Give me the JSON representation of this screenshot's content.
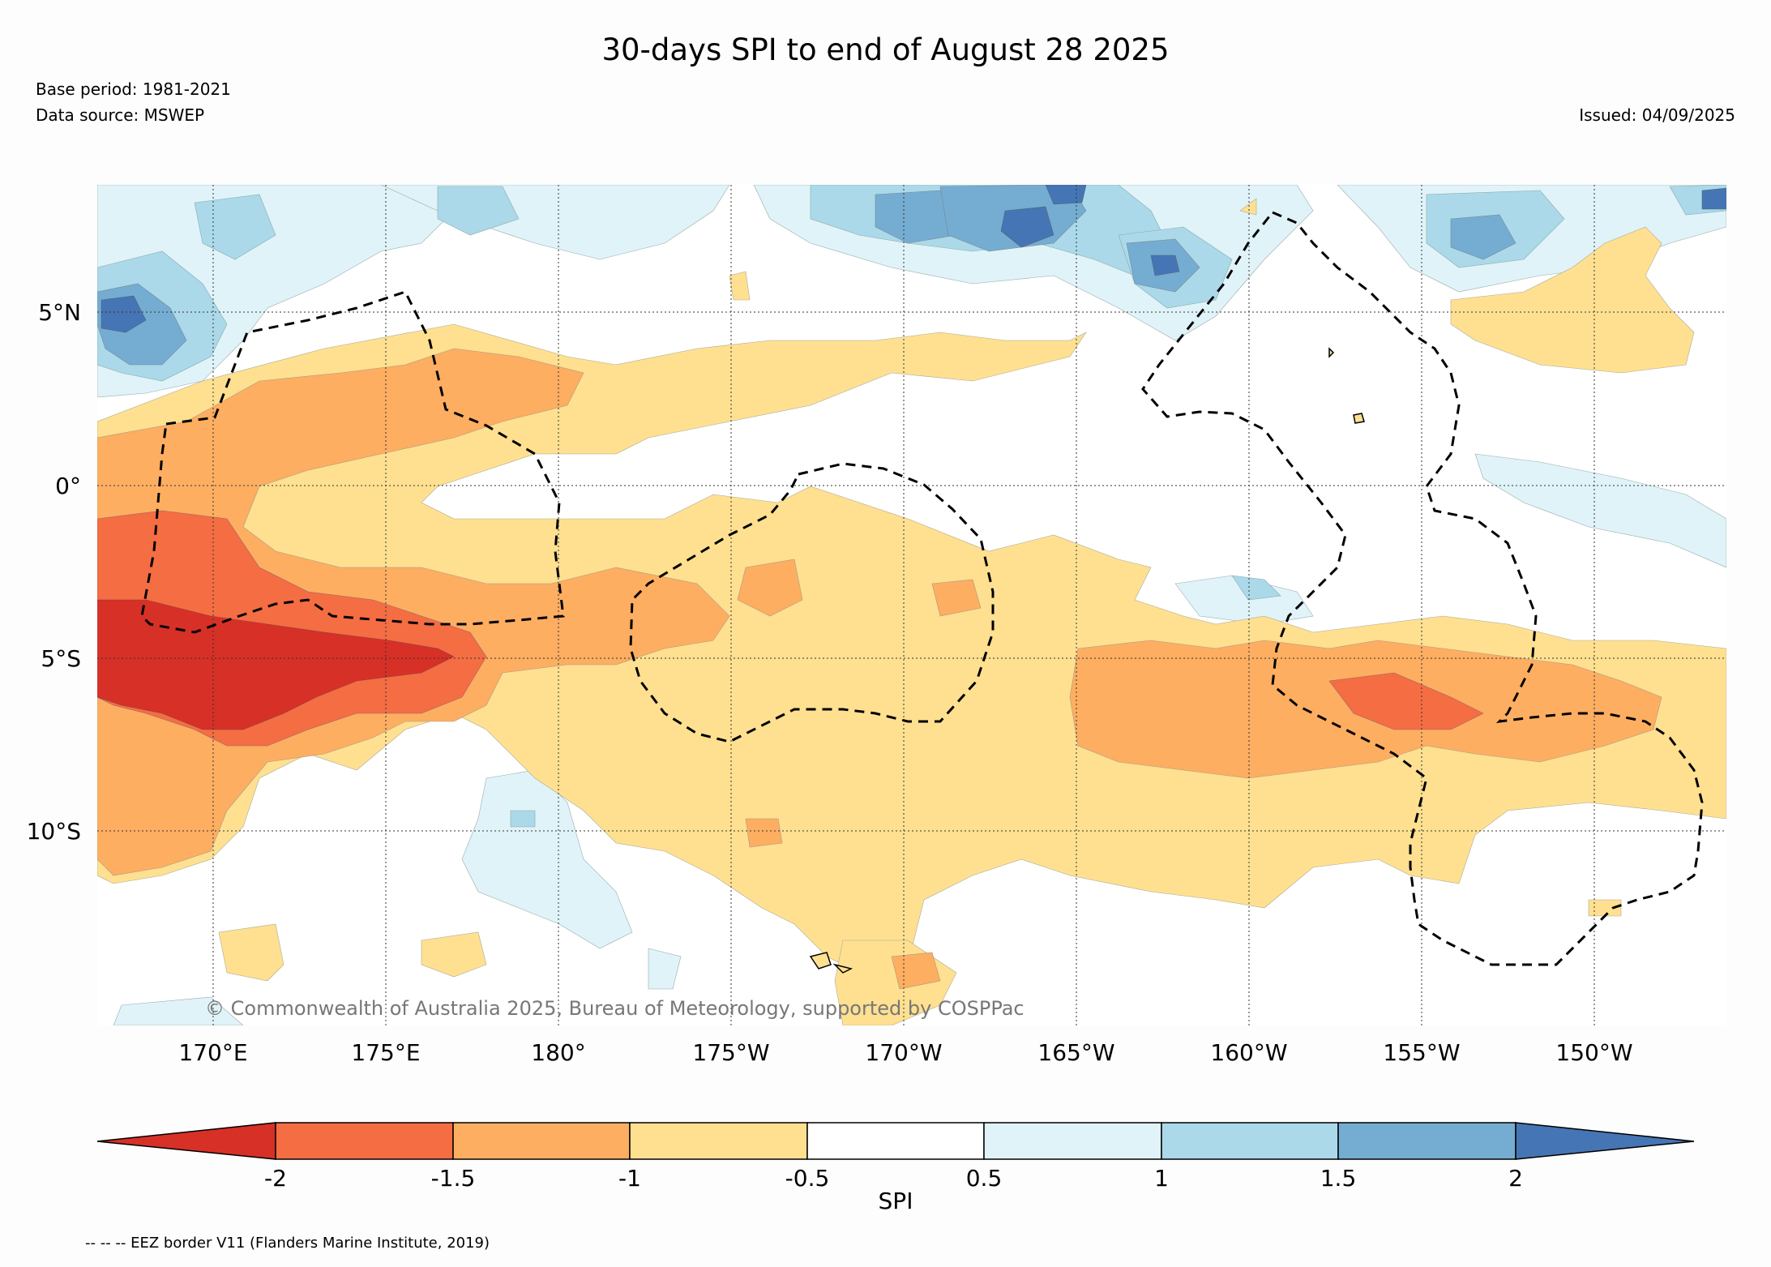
{
  "title": "30-days SPI to end of August 28 2025",
  "base_period": "Base period: 1981-2021",
  "data_source": "Data source: MSWEP",
  "issued": "Issued: 04/09/2025",
  "copyright": "© Commonwealth of Australia 2025, Bureau of Meteorology, supported by COSPPac",
  "lat_ticks": [
    "5°N",
    "0°",
    "5°S",
    "10°S"
  ],
  "lon_ticks": [
    "170°E",
    "175°E",
    "180°",
    "175°W",
    "170°W",
    "165°W",
    "160°W",
    "155°W",
    "150°W"
  ],
  "colorbar": {
    "label": "SPI",
    "ticks": [
      "-2",
      "-1.5",
      "-1",
      "-0.5",
      "0.5",
      "1",
      "1.5",
      "2"
    ],
    "colors": [
      "#d73027",
      "#f46d43",
      "#fdae61",
      "#fee090",
      "#ffffff",
      "#e0f3f8",
      "#abd9e9",
      "#74add1",
      "#4575b4"
    ]
  },
  "legend_text": "-- -- -- EEZ border V11 (Flanders Marine Institute, 2019)"
}
